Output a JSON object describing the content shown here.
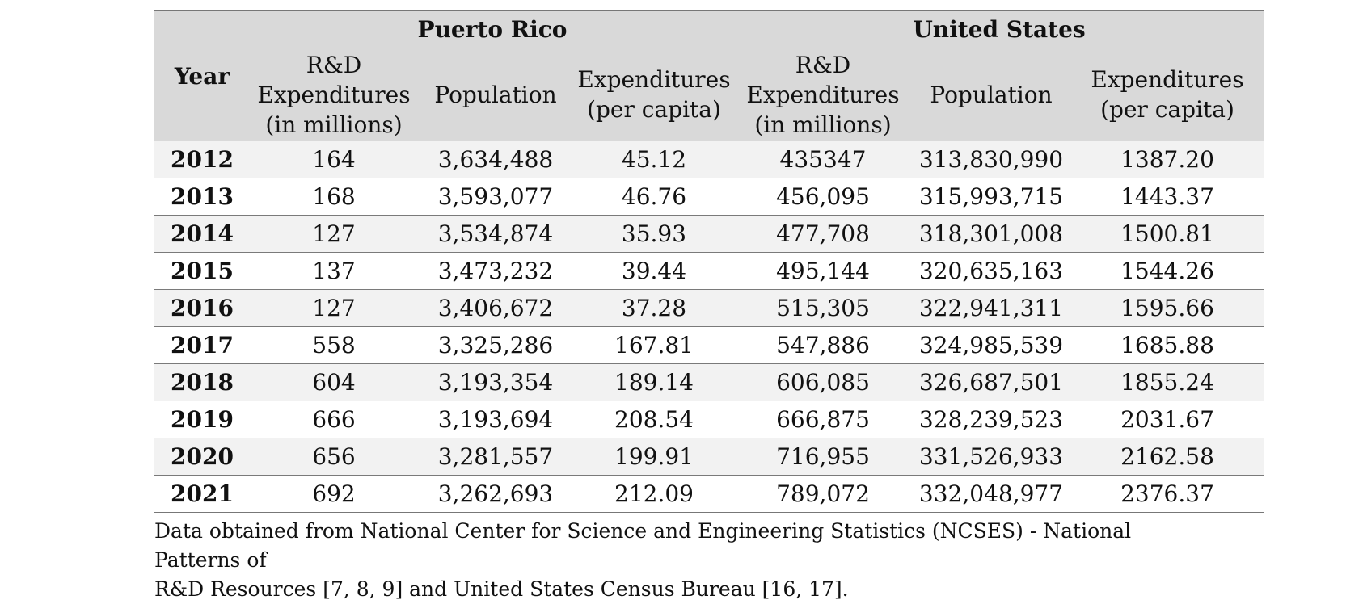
{
  "table": {
    "year_header": "Year",
    "groups": [
      "Puerto Rico",
      "United States"
    ],
    "subheaders": [
      [
        "R&D",
        "Expenditures",
        "(in millions)"
      ],
      [
        "Population"
      ],
      [
        "Expenditures",
        "(per capita)"
      ],
      [
        "R&D",
        "Expenditures",
        "(in millions)"
      ],
      [
        "Population"
      ],
      [
        "Expenditures",
        "(per capita)"
      ]
    ],
    "rows": [
      [
        "2012",
        "164",
        "3,634,488",
        "45.12",
        "435347",
        "313,830,990",
        "1387.20"
      ],
      [
        "2013",
        "168",
        "3,593,077",
        "46.76",
        "456,095",
        "315,993,715",
        "1443.37"
      ],
      [
        "2014",
        "127",
        "3,534,874",
        "35.93",
        "477,708",
        "318,301,008",
        "1500.81"
      ],
      [
        "2015",
        "137",
        "3,473,232",
        "39.44",
        "495,144",
        "320,635,163",
        "1544.26"
      ],
      [
        "2016",
        "127",
        "3,406,672",
        "37.28",
        "515,305",
        "322,941,311",
        "1595.66"
      ],
      [
        "2017",
        "558",
        "3,325,286",
        "167.81",
        "547,886",
        "324,985,539",
        "1685.88"
      ],
      [
        "2018",
        "604",
        "3,193,354",
        "189.14",
        "606,085",
        "326,687,501",
        "1855.24"
      ],
      [
        "2019",
        "666",
        "3,193,694",
        "208.54",
        "666,875",
        "328,239,523",
        "2031.67"
      ],
      [
        "2020",
        "656",
        "3,281,557",
        "199.91",
        "716,955",
        "331,526,933",
        "2162.58"
      ],
      [
        "2021",
        "692",
        "3,262,693",
        "212.09",
        "789,072",
        "332,048,977",
        "2376.37"
      ]
    ]
  },
  "footnote": {
    "line1": "Data obtained from National Center for Science and Engineering Statistics (NCSES) - National Patterns of",
    "line2": "R&D Resources [7, 8, 9] and United States Census Bureau [16, 17]."
  }
}
